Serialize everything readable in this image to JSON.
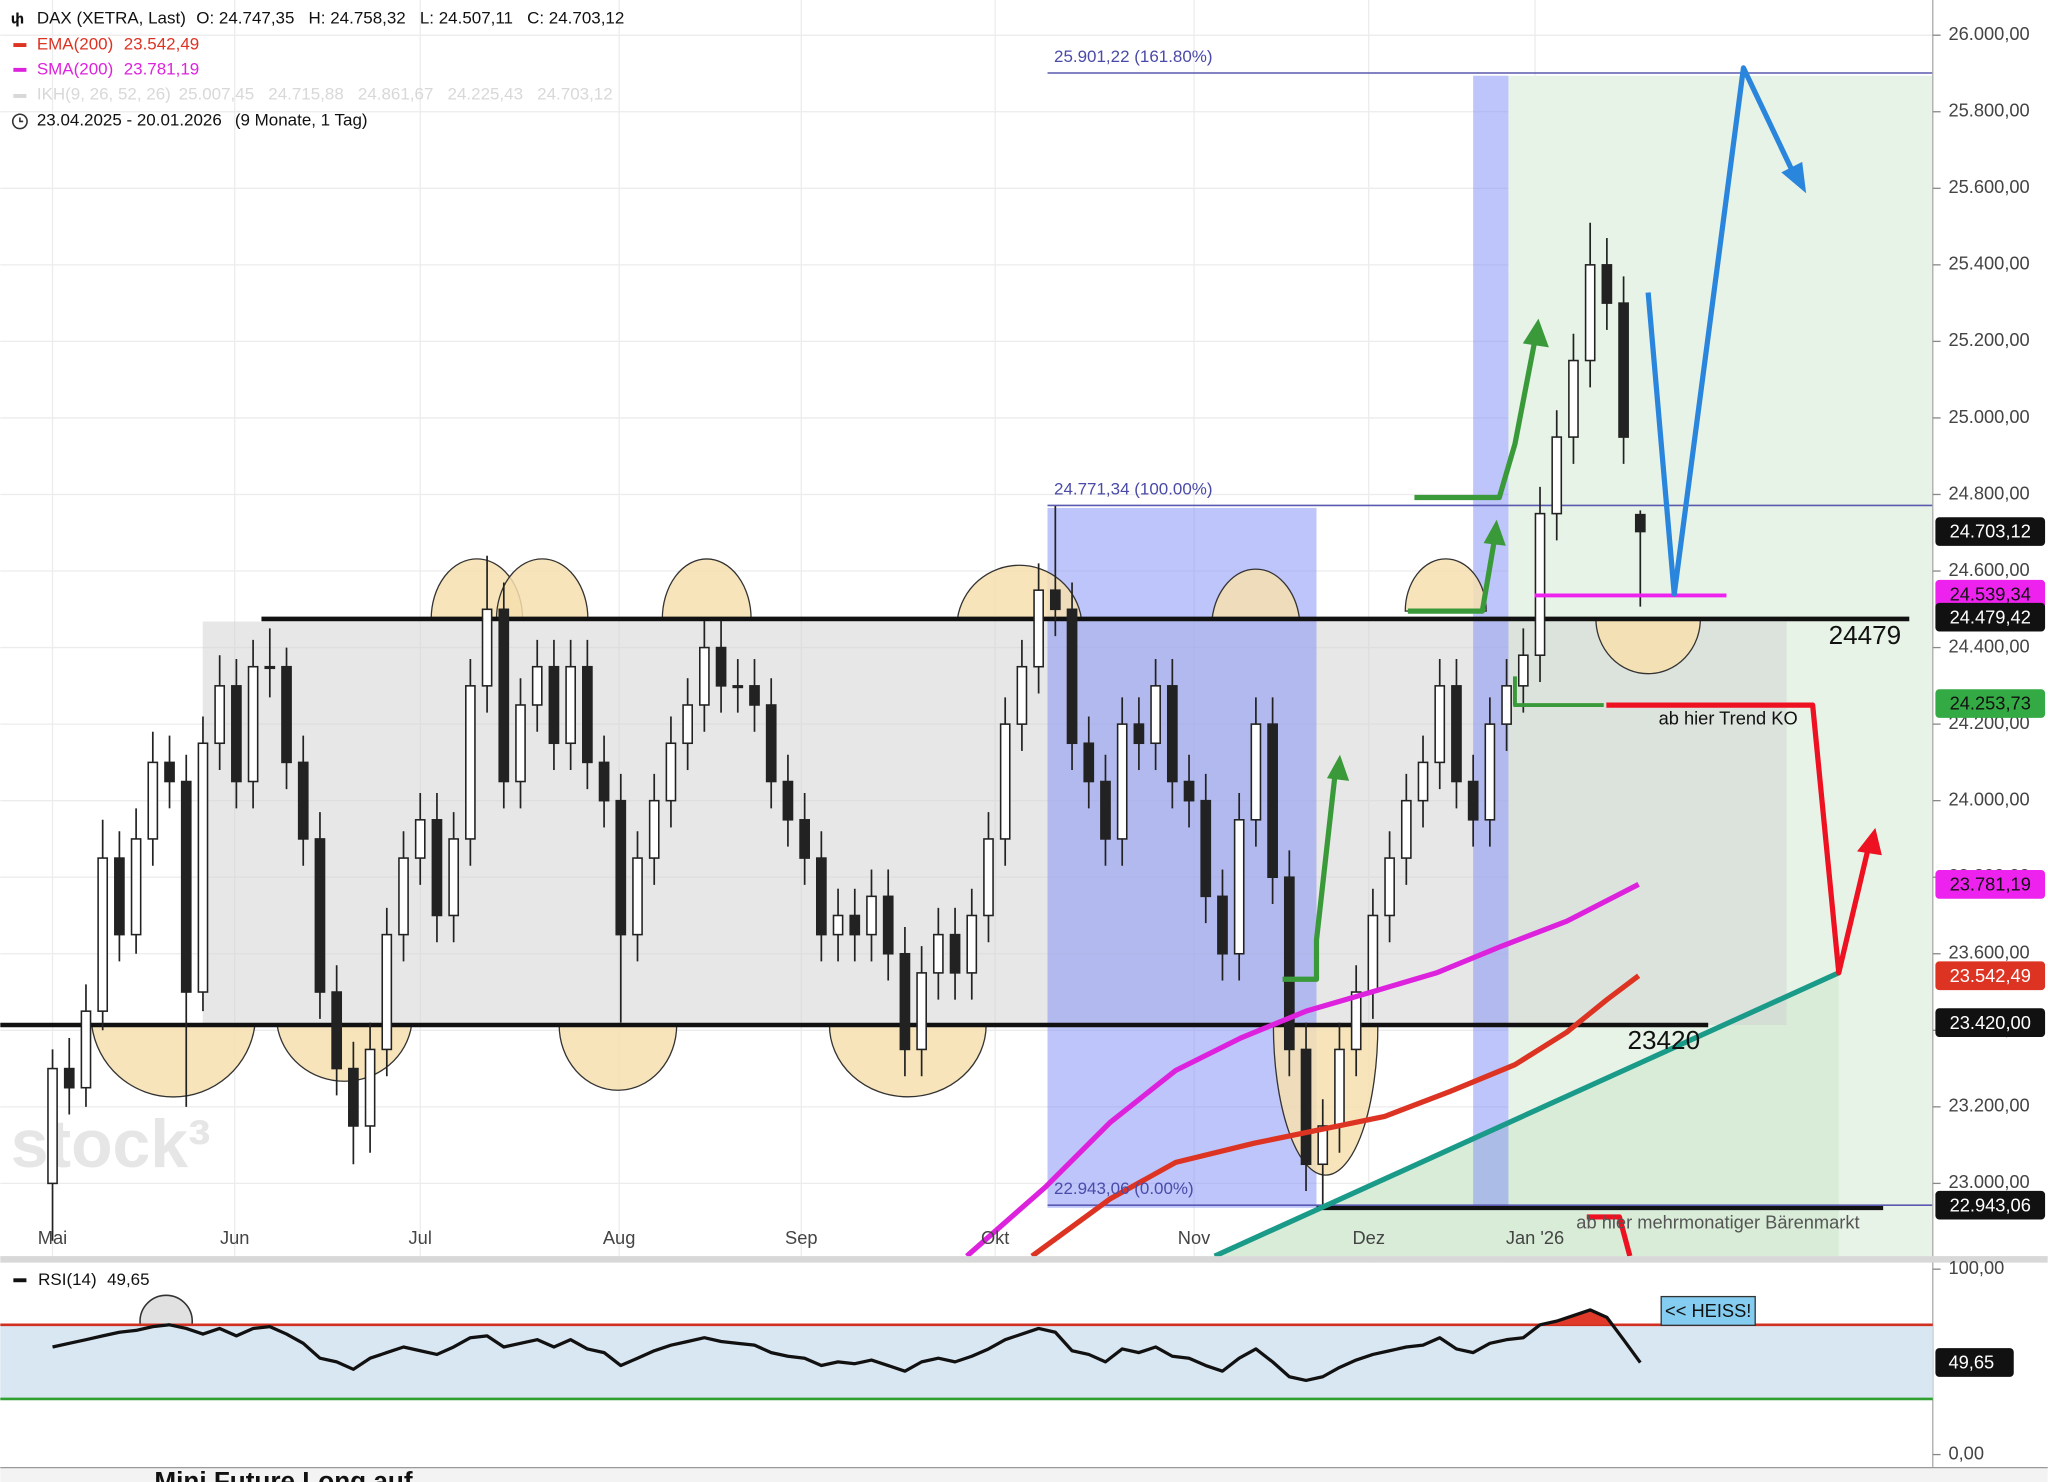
{
  "chart_data": [
    {
      "type": "candlestick",
      "title": "DAX (XETRA, Last)",
      "ohlc_text": "O: 24.747,35   H: 24.758,32   L: 24.507,11   C: 24.703,12",
      "date_range": "23.04.2025 - 20.01.2026",
      "period": "(9 Monate, 1 Tag)",
      "ikh_legend": {
        "name": "IKH(9, 26, 52, 26)",
        "values_label": "25.007,45   24.715,88   24.861,67   24.225,43   24.703,12",
        "color": "#d8d8d8"
      },
      "watermark": "stock³",
      "xlim": [
        -3.125,
        112.5
      ],
      "ylim": [
        22810,
        26092
      ],
      "grid": true,
      "candle_color": "#222222",
      "xticks": [
        {
          "value": 0,
          "label": "Mai"
        },
        {
          "value": 10.9,
          "label": "Jun"
        },
        {
          "value": 22,
          "label": "Jul"
        },
        {
          "value": 33.9,
          "label": "Aug"
        },
        {
          "value": 44.8,
          "label": "Sep"
        },
        {
          "value": 56.4,
          "label": "Okt"
        },
        {
          "value": 68.3,
          "label": "Nov"
        },
        {
          "value": 78.75,
          "label": "Dez"
        },
        {
          "value": 88.7,
          "label": "Jan '26"
        }
      ],
      "yticks": [
        {
          "value": 23000,
          "label": "23.000,00"
        },
        {
          "value": 23200,
          "label": "23.200,00"
        },
        {
          "value": 23400,
          "label": "23.400,00"
        },
        {
          "value": 23600,
          "label": "23.600,00"
        },
        {
          "value": 23800,
          "label": "23.800,00"
        },
        {
          "value": 24000,
          "label": "24.000,00"
        },
        {
          "value": 24200,
          "label": "24.200,00"
        },
        {
          "value": 24400,
          "label": "24.400,00"
        },
        {
          "value": 24600,
          "label": "24.600,00"
        },
        {
          "value": 24800,
          "label": "24.800,00"
        },
        {
          "value": 25000,
          "label": "25.000,00"
        },
        {
          "value": 25200,
          "label": "25.200,00"
        },
        {
          "value": 25400,
          "label": "25.400,00"
        },
        {
          "value": 25600,
          "label": "25.600,00"
        },
        {
          "value": 25800,
          "label": "25.800,00"
        },
        {
          "value": 26000,
          "label": "26.000,00"
        }
      ],
      "candles": [
        [
          23000,
          23350,
          22850,
          23300
        ],
        [
          23300,
          23380,
          23180,
          23250
        ],
        [
          23250,
          23520,
          23200,
          23450
        ],
        [
          23450,
          23950,
          23400,
          23850
        ],
        [
          23850,
          23920,
          23580,
          23650
        ],
        [
          23650,
          23980,
          23600,
          23900
        ],
        [
          23900,
          24180,
          23830,
          24100
        ],
        [
          24100,
          24170,
          23980,
          24050
        ],
        [
          24050,
          24120,
          23200,
          23500
        ],
        [
          23500,
          24220,
          23450,
          24150
        ],
        [
          24150,
          24380,
          24080,
          24300
        ],
        [
          24300,
          24370,
          23980,
          24050
        ],
        [
          24050,
          24420,
          23980,
          24350
        ],
        [
          24350,
          24450,
          24270,
          24350
        ],
        [
          24350,
          24400,
          24030,
          24100
        ],
        [
          24100,
          24170,
          23830,
          23900
        ],
        [
          23900,
          23970,
          23430,
          23500
        ],
        [
          23500,
          23570,
          23230,
          23300
        ],
        [
          23300,
          23370,
          23050,
          23150
        ],
        [
          23150,
          23420,
          23080,
          23350
        ],
        [
          23350,
          23720,
          23280,
          23650
        ],
        [
          23650,
          23920,
          23580,
          23850
        ],
        [
          23850,
          24020,
          23780,
          23950
        ],
        [
          23950,
          24020,
          23630,
          23700
        ],
        [
          23700,
          23970,
          23630,
          23900
        ],
        [
          23900,
          24370,
          23830,
          24300
        ],
        [
          24300,
          24640,
          24230,
          24500
        ],
        [
          24500,
          24570,
          23980,
          24050
        ],
        [
          24050,
          24320,
          23980,
          24250
        ],
        [
          24250,
          24420,
          24180,
          24350
        ],
        [
          24350,
          24420,
          24080,
          24150
        ],
        [
          24150,
          24420,
          24080,
          24350
        ],
        [
          24350,
          24420,
          24030,
          24100
        ],
        [
          24100,
          24170,
          23930,
          24000
        ],
        [
          24000,
          24070,
          23420,
          23650
        ],
        [
          23650,
          23920,
          23580,
          23850
        ],
        [
          23850,
          24070,
          23780,
          24000
        ],
        [
          24000,
          24220,
          23930,
          24150
        ],
        [
          24150,
          24320,
          24080,
          24250
        ],
        [
          24250,
          24470,
          24180,
          24400
        ],
        [
          24400,
          24470,
          24230,
          24300
        ],
        [
          24300,
          24370,
          24230,
          24300
        ],
        [
          24300,
          24370,
          24180,
          24250
        ],
        [
          24250,
          24320,
          23980,
          24050
        ],
        [
          24050,
          24120,
          23880,
          23950
        ],
        [
          23950,
          24020,
          23780,
          23850
        ],
        [
          23850,
          23920,
          23580,
          23650
        ],
        [
          23650,
          23770,
          23580,
          23700
        ],
        [
          23700,
          23770,
          23580,
          23650
        ],
        [
          23650,
          23820,
          23580,
          23750
        ],
        [
          23750,
          23820,
          23530,
          23600
        ],
        [
          23600,
          23670,
          23280,
          23350
        ],
        [
          23350,
          23620,
          23280,
          23550
        ],
        [
          23550,
          23720,
          23480,
          23650
        ],
        [
          23650,
          23720,
          23480,
          23550
        ],
        [
          23550,
          23770,
          23480,
          23700
        ],
        [
          23700,
          23970,
          23630,
          23900
        ],
        [
          23900,
          24270,
          23830,
          24200
        ],
        [
          24200,
          24420,
          24130,
          24350
        ],
        [
          24350,
          24620,
          24280,
          24550
        ],
        [
          24550,
          24770,
          24430,
          24500
        ],
        [
          24500,
          24570,
          24080,
          24150
        ],
        [
          24150,
          24220,
          23980,
          24050
        ],
        [
          24050,
          24120,
          23830,
          23900
        ],
        [
          23900,
          24270,
          23830,
          24200
        ],
        [
          24200,
          24270,
          24080,
          24150
        ],
        [
          24150,
          24370,
          24080,
          24300
        ],
        [
          24300,
          24370,
          23980,
          24050
        ],
        [
          24050,
          24120,
          23930,
          24000
        ],
        [
          24000,
          24070,
          23680,
          23750
        ],
        [
          23750,
          23820,
          23530,
          23600
        ],
        [
          23600,
          24020,
          23530,
          23950
        ],
        [
          23950,
          24270,
          23880,
          24200
        ],
        [
          24200,
          24270,
          23730,
          23800
        ],
        [
          23800,
          23870,
          23280,
          23350
        ],
        [
          23350,
          23420,
          22980,
          23050
        ],
        [
          23050,
          23220,
          22943,
          23150
        ],
        [
          23150,
          23420,
          23080,
          23350
        ],
        [
          23350,
          23570,
          23280,
          23500
        ],
        [
          23500,
          23770,
          23430,
          23700
        ],
        [
          23700,
          23920,
          23630,
          23850
        ],
        [
          23850,
          24070,
          23780,
          24000
        ],
        [
          24000,
          24170,
          23930,
          24100
        ],
        [
          24100,
          24370,
          24030,
          24300
        ],
        [
          24300,
          24370,
          23980,
          24050
        ],
        [
          24050,
          24120,
          23880,
          23950
        ],
        [
          23950,
          24270,
          23880,
          24200
        ],
        [
          24200,
          24370,
          24130,
          24300
        ],
        [
          24300,
          24450,
          24230,
          24380
        ],
        [
          24380,
          24820,
          24310,
          24750
        ],
        [
          24750,
          25020,
          24680,
          24950
        ],
        [
          24950,
          25220,
          24880,
          25150
        ],
        [
          25150,
          25510,
          25080,
          25400
        ],
        [
          25400,
          25470,
          25230,
          25300
        ],
        [
          25300,
          25370,
          24880,
          24950
        ],
        [
          24747.35,
          24758.32,
          24507.11,
          24703.12
        ]
      ],
      "series": [
        {
          "name": "EMA(200)",
          "value_label": "23.542,49",
          "color": "#dd3322",
          "x": [
            58.6,
            63.3,
            67.2,
            71.9,
            75.8,
            79.7,
            83.6,
            87.5,
            90.6,
            93,
            94.9
          ],
          "values": [
            22810,
            22960,
            23055,
            23105,
            23140,
            23175,
            23240,
            23310,
            23395,
            23480,
            23542.49
          ]
        },
        {
          "name": "SMA(200)",
          "value_label": "23.781,19",
          "color": "#dd22dd",
          "x": [
            54.7,
            59.4,
            63.3,
            67.2,
            71.1,
            75,
            78.9,
            82.8,
            86.7,
            90.6,
            94.9
          ],
          "values": [
            22810,
            22990,
            23160,
            23295,
            23380,
            23450,
            23500,
            23550,
            23620,
            23685,
            23781.19
          ]
        }
      ],
      "fib_levels": [
        {
          "value": 25901.22,
          "label": "25.901,22 (161.80%)"
        },
        {
          "value": 24771.34,
          "label": "24.771,34 (100.00%)"
        },
        {
          "value": 22943.06,
          "label": "22.943,06 (0.00%)"
        }
      ],
      "price_tags": [
        {
          "value": 24703.12,
          "label": "24.703,12",
          "color": "#111111",
          "text_color": "#ffffff"
        },
        {
          "value": 24539.34,
          "label": "24.539,34",
          "color": "#ee22ee",
          "text_color": "#111111"
        },
        {
          "value": 24479.42,
          "label": "24.479,42",
          "color": "#111111",
          "text_color": "#ffffff"
        },
        {
          "value": 24253.73,
          "label": "24.253,73",
          "color": "#33aa44",
          "text_color": "#111111"
        },
        {
          "value": 23781.19,
          "label": "23.781,19",
          "color": "#ee22ee",
          "text_color": "#111111"
        },
        {
          "value": 23542.49,
          "label": "23.542,49",
          "color": "#dd3322",
          "text_color": "#ffffff"
        },
        {
          "value": 23420,
          "label": "23.420,00",
          "color": "#111111",
          "text_color": "#ffffff"
        },
        {
          "value": 22943.06,
          "label": "22.943,06",
          "color": "#111111",
          "text_color": "#ffffff"
        }
      ],
      "annotations": [
        "24479",
        "23420",
        "ab hier Trend KO",
        "ab hier mehrmonatiger Bärenmarkt"
      ]
    },
    {
      "type": "line",
      "title": "RSI(14)",
      "last_label": "49,65",
      "color": "#111111",
      "callout": "<< HEISS!",
      "xlim": [
        -3.125,
        112.5
      ],
      "ylim": [
        0,
        100
      ],
      "yticks": [
        {
          "value": 0,
          "label": "0,00"
        },
        {
          "value": 100,
          "label": "100,00"
        }
      ],
      "levels": [
        {
          "value": 70,
          "color": "#d03020"
        },
        {
          "value": 30,
          "color": "#30a030"
        }
      ],
      "overbought_color": "#e03a2a",
      "band_color": "#d9e7f3",
      "values": [
        58,
        60,
        62,
        64,
        66,
        67,
        69,
        70,
        68,
        65,
        68,
        64,
        68,
        69,
        65,
        60,
        52,
        50,
        46,
        52,
        55,
        58,
        56,
        54,
        58,
        63,
        64,
        58,
        60,
        62,
        58,
        62,
        57,
        55,
        48,
        52,
        56,
        59,
        61,
        63,
        61,
        60,
        59,
        55,
        53,
        52,
        48,
        50,
        49,
        51,
        48,
        45,
        50,
        52,
        50,
        53,
        57,
        62,
        65,
        68,
        66,
        56,
        54,
        50,
        57,
        55,
        58,
        53,
        52,
        48,
        45,
        52,
        57,
        50,
        42,
        40,
        42,
        47,
        51,
        54,
        56,
        58,
        59,
        63,
        57,
        55,
        60,
        62,
        63,
        70,
        72,
        75,
        78,
        74,
        62,
        49.65
      ]
    }
  ],
  "footer": {
    "text": "Mini Future Long auf"
  }
}
